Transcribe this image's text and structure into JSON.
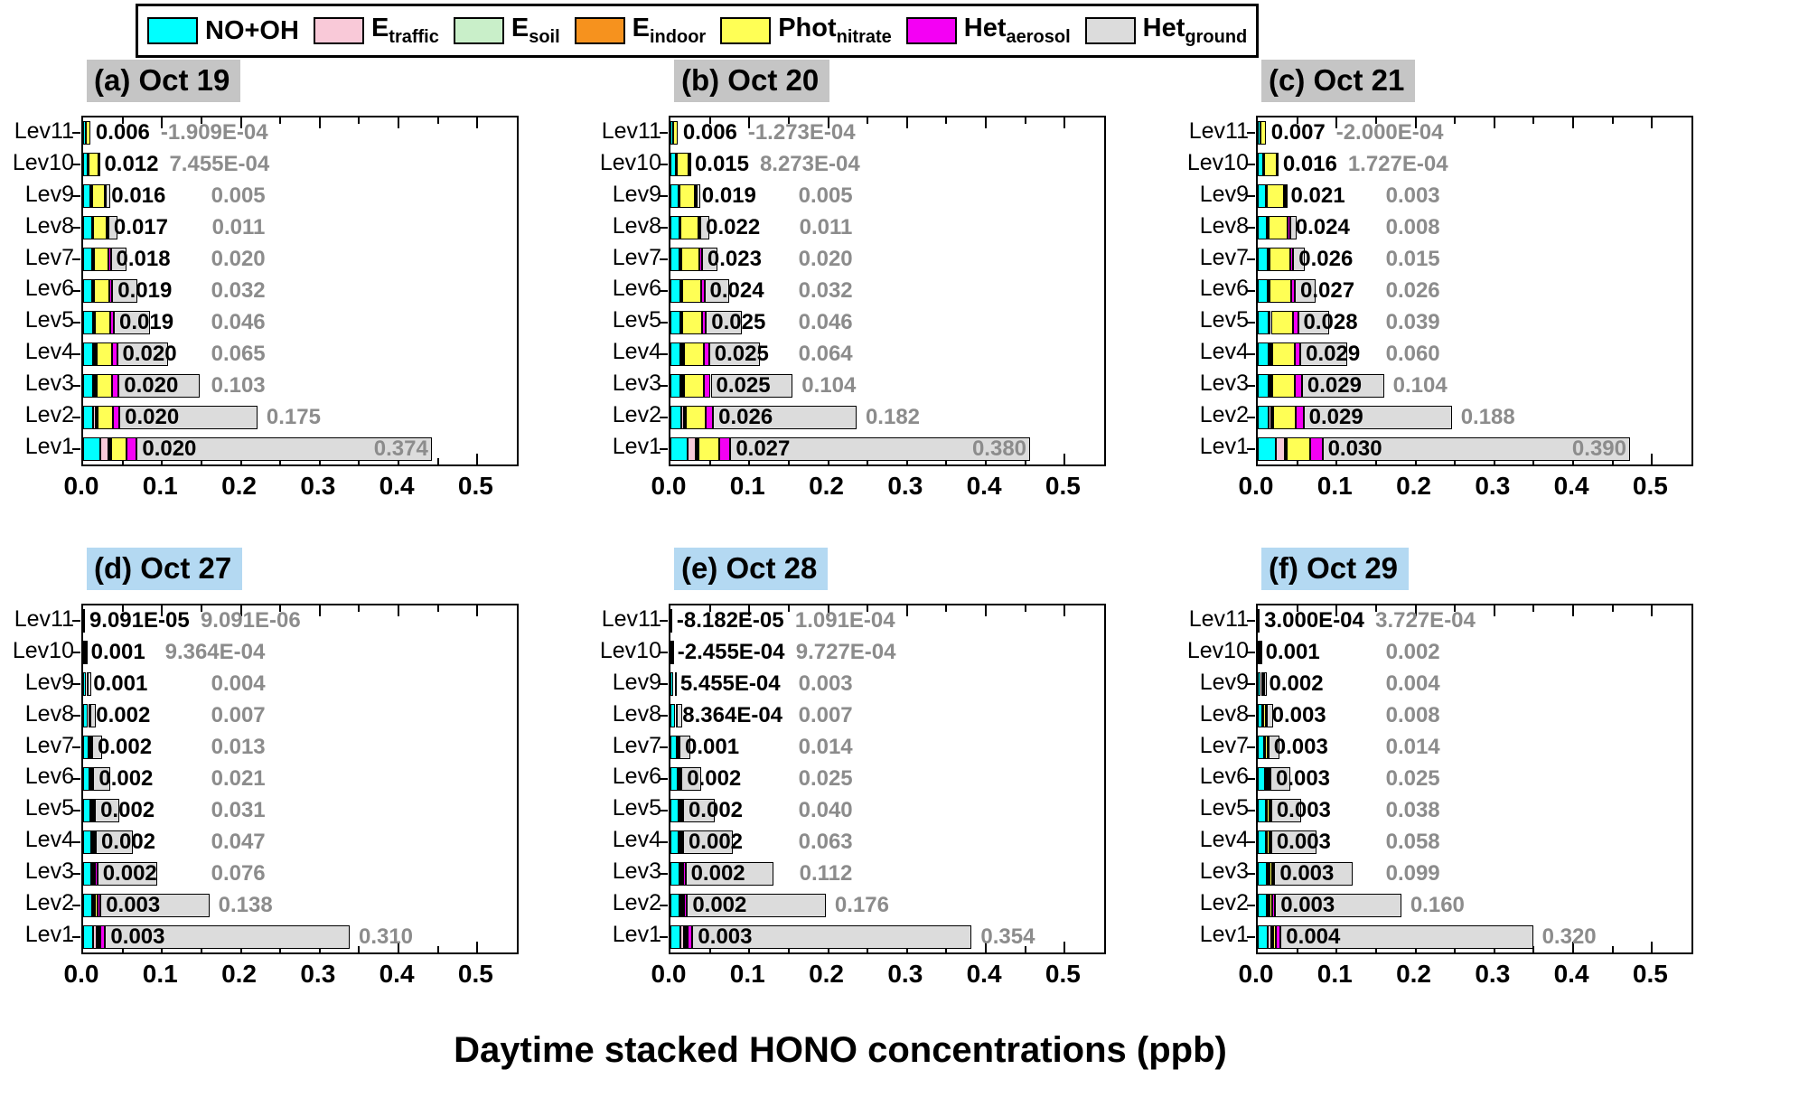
{
  "legend": {
    "items": [
      {
        "label": "NO+OH",
        "main": "NO+OH",
        "sub": "",
        "color": "#00ffff"
      },
      {
        "label": "E_traffic",
        "main": "E",
        "sub": "traffic",
        "color": "#f9c9d8"
      },
      {
        "label": "E_soil",
        "main": "E",
        "sub": "soil",
        "color": "#c9efc9"
      },
      {
        "label": "E_indoor",
        "main": "E",
        "sub": "indoor",
        "color": "#f6921e"
      },
      {
        "label": "Phot_nitrate",
        "main": "Phot",
        "sub": "nitrate",
        "color": "#ffff55"
      },
      {
        "label": "Het_aerosol",
        "main": "Het",
        "sub": "aerosol",
        "color": "#f400f4"
      },
      {
        "label": "Het_ground",
        "main": "Het",
        "sub": "ground",
        "color": "#dcdcdc"
      }
    ]
  },
  "chart_data": {
    "type": "bar",
    "orientation": "horizontal-stacked",
    "xlabel": "Daytime stacked HONO concentrations (ppb)",
    "xlim": [
      0,
      0.55
    ],
    "x_ticks": [
      "0.0",
      "0.1",
      "0.2",
      "0.3",
      "0.4",
      "0.5"
    ],
    "categories": [
      "Lev11",
      "Lev10",
      "Lev9",
      "Lev8",
      "Lev7",
      "Lev6",
      "Lev5",
      "Lev4",
      "Lev3",
      "Lev2",
      "Lev1"
    ],
    "components": [
      "NO+OH",
      "E_traffic",
      "E_soil",
      "E_indoor",
      "Phot_nitrate",
      "Het_aerosol",
      "Het_ground"
    ],
    "panels": [
      {
        "id": "a",
        "tag": "(a)",
        "date": "Oct 19",
        "highlight_color": "#c5c5c5",
        "phot_nitrate_labels": [
          "0.006",
          "0.012",
          "0.016",
          "0.017",
          "0.018",
          "0.019",
          "0.019",
          "0.020",
          "0.020",
          "0.020",
          "0.020"
        ],
        "het_ground_labels": [
          "-1.909E-04",
          "7.455E-04",
          "0.005",
          "0.011",
          "0.020",
          "0.032",
          "0.046",
          "0.065",
          "0.103",
          "0.175",
          "0.374"
        ],
        "estimated_series": {
          "NO+OH": [
            0.003,
            0.006,
            0.009,
            0.011,
            0.012,
            0.012,
            0.013,
            0.013,
            0.013,
            0.013,
            0.022
          ],
          "E_traffic": [
            0,
            0.001,
            0.001,
            0.001,
            0.001,
            0.001,
            0.001,
            0.002,
            0.002,
            0.003,
            0.01
          ],
          "E_soil": [
            0,
            0,
            0.0005,
            0.0005,
            0.0005,
            0.0005,
            0.0005,
            0.001,
            0.001,
            0.001,
            0.001
          ],
          "E_indoor": [
            0,
            0,
            0.0005,
            0.0005,
            0.0005,
            0.0005,
            0.0005,
            0.001,
            0.001,
            0.001,
            0.002
          ],
          "Het_aerosol": [
            0,
            0.001,
            0.002,
            0.002,
            0.003,
            0.004,
            0.005,
            0.006,
            0.008,
            0.008,
            0.013
          ]
        }
      },
      {
        "id": "b",
        "tag": "(b)",
        "date": "Oct 20",
        "highlight_color": "#c5c5c5",
        "phot_nitrate_labels": [
          "0.006",
          "0.015",
          "0.019",
          "0.022",
          "0.023",
          "0.024",
          "0.025",
          "0.025",
          "0.025",
          "0.026",
          "0.027"
        ],
        "het_ground_labels": [
          "-1.273E-04",
          "8.273E-04",
          "0.005",
          "0.011",
          "0.020",
          "0.032",
          "0.046",
          "0.064",
          "0.104",
          "0.182",
          "0.380"
        ],
        "estimated_series": {
          "NO+OH": [
            0.003,
            0.007,
            0.01,
            0.011,
            0.012,
            0.013,
            0.013,
            0.013,
            0.013,
            0.014,
            0.022
          ],
          "E_traffic": [
            0,
            0.001,
            0.001,
            0.001,
            0.001,
            0.001,
            0.001,
            0.002,
            0.002,
            0.003,
            0.01
          ],
          "E_soil": [
            0,
            0,
            0.0005,
            0.0005,
            0.0005,
            0.0005,
            0.0005,
            0.001,
            0.001,
            0.001,
            0.001
          ],
          "E_indoor": [
            0,
            0,
            0.0005,
            0.0005,
            0.0005,
            0.0005,
            0.0005,
            0.001,
            0.001,
            0.001,
            0.002
          ],
          "Het_aerosol": [
            0,
            0.001,
            0.002,
            0.003,
            0.003,
            0.004,
            0.005,
            0.007,
            0.009,
            0.009,
            0.014
          ]
        }
      },
      {
        "id": "c",
        "tag": "(c)",
        "date": "Oct 21",
        "highlight_color": "#c5c5c5",
        "phot_nitrate_labels": [
          "0.007",
          "0.016",
          "0.021",
          "0.024",
          "0.026",
          "0.027",
          "0.028",
          "0.029",
          "0.029",
          "0.029",
          "0.030"
        ],
        "het_ground_labels": [
          "-2.000E-04",
          "1.727E-04",
          "0.003",
          "0.008",
          "0.015",
          "0.026",
          "0.039",
          "0.060",
          "0.104",
          "0.188",
          "0.390"
        ],
        "estimated_series": {
          "NO+OH": [
            0.003,
            0.007,
            0.01,
            0.012,
            0.013,
            0.013,
            0.014,
            0.014,
            0.014,
            0.014,
            0.023
          ],
          "E_traffic": [
            0,
            0.001,
            0.001,
            0.001,
            0.001,
            0.001,
            0.002,
            0.002,
            0.002,
            0.003,
            0.011
          ],
          "E_soil": [
            0,
            0,
            0.0005,
            0.0005,
            0.0005,
            0.0005,
            0.0005,
            0.001,
            0.001,
            0.001,
            0.001
          ],
          "E_indoor": [
            0,
            0,
            0.0005,
            0.0005,
            0.0005,
            0.0005,
            0.0005,
            0.001,
            0.001,
            0.001,
            0.002
          ],
          "Het_aerosol": [
            0,
            0.001,
            0.002,
            0.003,
            0.004,
            0.005,
            0.006,
            0.007,
            0.009,
            0.01,
            0.015
          ]
        }
      },
      {
        "id": "d",
        "tag": "(d)",
        "date": "Oct 27",
        "highlight_color": "#b4d9f2",
        "phot_nitrate_labels": [
          "9.091E-05",
          "0.001",
          "0.001",
          "0.002",
          "0.002",
          "0.002",
          "0.002",
          "0.002",
          "0.002",
          "0.003",
          "0.003"
        ],
        "het_ground_labels": [
          "9.091E-06",
          "9.364E-04",
          "0.004",
          "0.007",
          "0.013",
          "0.021",
          "0.031",
          "0.047",
          "0.076",
          "0.138",
          "0.310"
        ],
        "estimated_series": {
          "NO+OH": [
            0.001,
            0.002,
            0.004,
            0.006,
            0.007,
            0.008,
            0.009,
            0.01,
            0.01,
            0.011,
            0.013
          ],
          "E_traffic": [
            0,
            0,
            0.0005,
            0.0005,
            0.001,
            0.001,
            0.001,
            0.001,
            0.001,
            0.002,
            0.004
          ],
          "E_soil": [
            0,
            0,
            0,
            0,
            0.0005,
            0.0005,
            0.0005,
            0.0005,
            0.001,
            0.001,
            0.001
          ],
          "E_indoor": [
            0,
            0,
            0,
            0,
            0,
            0.0005,
            0.0005,
            0.0005,
            0.001,
            0.001,
            0.001
          ],
          "Het_aerosol": [
            0,
            0,
            0.0005,
            0.001,
            0.001,
            0.001,
            0.002,
            0.002,
            0.003,
            0.004,
            0.006
          ]
        }
      },
      {
        "id": "e",
        "tag": "(e)",
        "date": "Oct 28",
        "highlight_color": "#b4d9f2",
        "phot_nitrate_labels": [
          "-8.182E-05",
          "-2.455E-04",
          "5.455E-04",
          "8.364E-04",
          "0.001",
          "0.002",
          "0.002",
          "0.002",
          "0.002",
          "0.002",
          "0.003"
        ],
        "het_ground_labels": [
          "1.091E-04",
          "9.727E-04",
          "0.003",
          "0.007",
          "0.014",
          "0.025",
          "0.040",
          "0.063",
          "0.112",
          "0.176",
          "0.354"
        ],
        "estimated_series": {
          "NO+OH": [
            0.001,
            0.002,
            0.004,
            0.006,
            0.008,
            0.009,
            0.01,
            0.01,
            0.011,
            0.011,
            0.013
          ],
          "E_traffic": [
            0,
            0,
            0.0005,
            0.0005,
            0.001,
            0.001,
            0.001,
            0.001,
            0.001,
            0.002,
            0.004
          ],
          "E_soil": [
            0,
            0,
            0,
            0,
            0.0005,
            0.0005,
            0.0005,
            0.0005,
            0.001,
            0.001,
            0.001
          ],
          "E_indoor": [
            0,
            0,
            0,
            0,
            0,
            0.0005,
            0.0005,
            0.0005,
            0.001,
            0.001,
            0.001
          ],
          "Het_aerosol": [
            0,
            0,
            0.0005,
            0.001,
            0.001,
            0.001,
            0.002,
            0.002,
            0.003,
            0.004,
            0.006
          ]
        }
      },
      {
        "id": "f",
        "tag": "(f)",
        "date": "Oct 29",
        "highlight_color": "#b4d9f2",
        "phot_nitrate_labels": [
          "3.000E-04",
          "0.001",
          "0.002",
          "0.003",
          "0.003",
          "0.003",
          "0.003",
          "0.003",
          "0.003",
          "0.003",
          "0.004"
        ],
        "het_ground_labels": [
          "3.727E-04",
          "0.002",
          "0.004",
          "0.008",
          "0.014",
          "0.025",
          "0.038",
          "0.058",
          "0.099",
          "0.160",
          "0.320"
        ],
        "estimated_series": {
          "NO+OH": [
            0.001,
            0.002,
            0.004,
            0.006,
            0.008,
            0.009,
            0.01,
            0.01,
            0.011,
            0.011,
            0.013
          ],
          "E_traffic": [
            0,
            0,
            0.0005,
            0.001,
            0.001,
            0.001,
            0.001,
            0.001,
            0.002,
            0.002,
            0.004
          ],
          "E_soil": [
            0,
            0,
            0,
            0,
            0.0005,
            0.0005,
            0.0005,
            0.0005,
            0.001,
            0.001,
            0.001
          ],
          "E_indoor": [
            0,
            0,
            0,
            0,
            0,
            0.0005,
            0.0005,
            0.0005,
            0.001,
            0.001,
            0.001
          ],
          "Het_aerosol": [
            0,
            0,
            0.001,
            0.001,
            0.001,
            0.002,
            0.002,
            0.002,
            0.003,
            0.004,
            0.006
          ]
        }
      }
    ]
  }
}
